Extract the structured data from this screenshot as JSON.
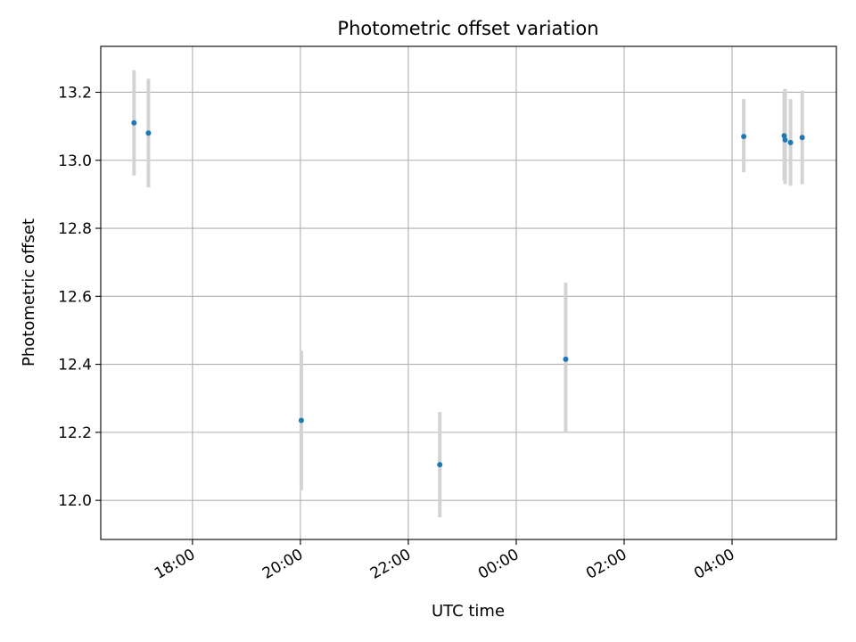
{
  "chart_data": {
    "type": "scatter",
    "title": "Photometric offset variation",
    "xlabel": "UTC time",
    "ylabel": "Photometric offset",
    "x_axis": {
      "kind": "time",
      "range": [
        "16:18",
        "05:56"
      ],
      "ticks": [
        "18:00",
        "20:00",
        "22:00",
        "00:00",
        "02:00",
        "04:00"
      ]
    },
    "y_axis": {
      "range": [
        11.885,
        13.335
      ],
      "ticks": [
        "12.0",
        "12.2",
        "12.4",
        "12.6",
        "12.8",
        "13.0",
        "13.2"
      ]
    },
    "grid": true,
    "points": [
      {
        "x": "16:55",
        "y": 13.11,
        "err_low": 12.955,
        "err_high": 13.265
      },
      {
        "x": "17:11",
        "y": 13.08,
        "err_low": 12.92,
        "err_high": 13.24
      },
      {
        "x": "20:01",
        "y": 12.235,
        "err_low": 12.03,
        "err_high": 12.44
      },
      {
        "x": "22:35",
        "y": 12.105,
        "err_low": 11.95,
        "err_high": 12.26
      },
      {
        "x": "00:55",
        "y": 12.415,
        "err_low": 12.2,
        "err_high": 12.64
      },
      {
        "x": "04:13",
        "y": 13.07,
        "err_low": 12.965,
        "err_high": 13.18
      },
      {
        "x": "04:58",
        "y": 13.072,
        "err_low": 12.94,
        "err_high": 13.2
      },
      {
        "x": "04:59",
        "y": 13.06,
        "err_low": 12.93,
        "err_high": 13.21
      },
      {
        "x": "05:05",
        "y": 13.052,
        "err_low": 12.925,
        "err_high": 13.18
      },
      {
        "x": "05:18",
        "y": 13.067,
        "err_low": 12.93,
        "err_high": 13.205
      }
    ],
    "colors": {
      "marker": "#1f77b4",
      "error_bar": "#d3d3d3",
      "grid": "#b0b0b0",
      "axes": "#000000"
    }
  }
}
